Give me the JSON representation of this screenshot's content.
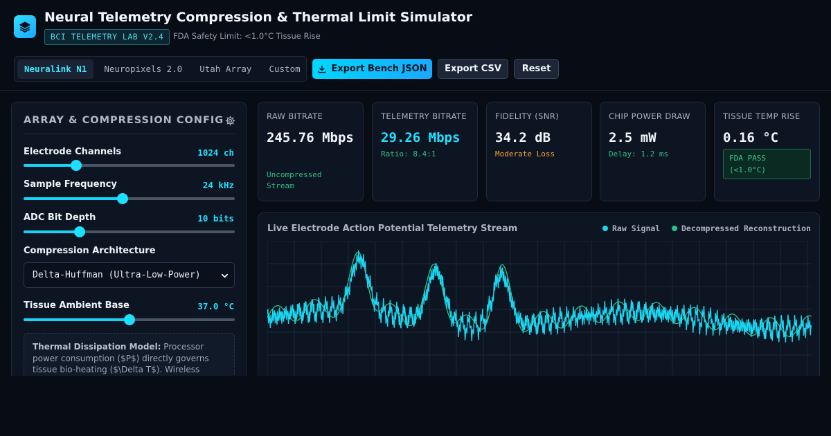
{
  "header": {
    "title": "Neural Telemetry Compression & Thermal Limit Simulator",
    "badge": "BCI TELEMETRY LAB V2.4",
    "safety_note": "FDA Safety Limit: <1.0°C Tissue Rise",
    "logo_icon": "layers-icon"
  },
  "presets": {
    "tabs": [
      {
        "label": "Neuralink N1",
        "active": true
      },
      {
        "label": "Neuropixels 2.0",
        "active": false
      },
      {
        "label": "Utah Array",
        "active": false
      },
      {
        "label": "Custom",
        "active": false
      }
    ]
  },
  "toolbar": {
    "export_json_label": "Export Bench JSON",
    "export_csv_label": "Export CSV",
    "reset_label": "Reset"
  },
  "config": {
    "title": "ARRAY & COMPRESSION CONFIG",
    "controls": [
      {
        "label": "Electrode Channels",
        "value": "1024 ch",
        "fraction": 0.25
      },
      {
        "label": "Sample Frequency",
        "value": "24 kHz",
        "fraction": 0.468
      },
      {
        "label": "ADC Bit Depth",
        "value": "10 bits",
        "fraction": 0.265
      },
      {
        "label": "Tissue Ambient Base",
        "value": "37.0 °C",
        "fraction": 0.5
      }
    ],
    "architecture_label": "Compression Architecture",
    "architecture_value": "Delta-Huffman (Ultra-Low-Power)",
    "note_heading": "Thermal Dissipation Model:",
    "note_text": " Processor power consumption ($P$) directly governs tissue bio-heating ($\\Delta T$). Wireless"
  },
  "metrics": [
    {
      "label": "RAW BITRATE",
      "value": "245.76 Mbps",
      "sub": "Uncompressed Stream"
    },
    {
      "label": "TELEMETRY BITRATE",
      "value": "29.26 Mbps",
      "sub": "Ratio: 8.4:1"
    },
    {
      "label": "FIDELITY (SNR)",
      "value": "34.2 dB",
      "sub": "Moderate Loss"
    },
    {
      "label": "CHIP POWER DRAW",
      "value": "2.5 mW",
      "sub": "Delay: 1.2 ms"
    },
    {
      "label": "TISSUE TEMP RISE",
      "value": "0.16 °C",
      "badge_line1": "FDA PASS",
      "badge_line2": "(<1.0°C)"
    }
  ],
  "chart_data": {
    "type": "line",
    "title": "Live Electrode Action Potential Telemetry Stream",
    "legend_position": "top-right",
    "grid": true,
    "series": [
      {
        "name": "Raw Signal",
        "color": "#1ad6f0"
      },
      {
        "name": "Decompressed Reconstruction",
        "color": "#2fbf86"
      }
    ],
    "spikes": [
      0.17,
      0.31,
      0.43
    ],
    "colors": {
      "raw": "#1ad6f0",
      "reconstruction": "#2fbf86",
      "grid": "#1c2636"
    }
  }
}
